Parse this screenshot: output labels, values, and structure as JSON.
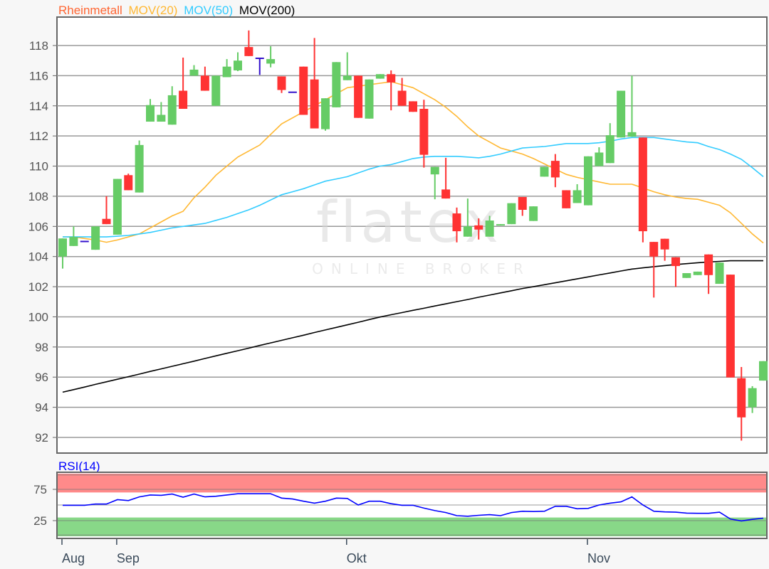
{
  "chart_data": [
    {
      "type": "candlestick",
      "legend": [
        {
          "label": "Rheinmetall",
          "color": "#ff6633"
        },
        {
          "label": "MOV(20)",
          "color": "#ffb833"
        },
        {
          "label": "MOV(50)",
          "color": "#33ccff"
        },
        {
          "label": "MOV(200)",
          "color": "#000000"
        }
      ],
      "legend_placement": "top-left",
      "ylim": [
        91,
        120
      ],
      "yticks": [
        "92",
        "94",
        "96",
        "98",
        "100",
        "102",
        "104",
        "106",
        "108",
        "110",
        "112",
        "114",
        "116",
        "118"
      ],
      "grid": true,
      "colors": {
        "up": "#66cc66",
        "down": "#ff3333",
        "unchanged": "#3311cc"
      },
      "candles": [
        [
          104.0,
          105.2,
          103.2,
          105.2
        ],
        [
          104.7,
          106.0,
          104.7,
          105.3
        ],
        [
          105.0,
          105.0,
          105.0,
          105.0
        ],
        [
          104.45,
          106.0,
          104.45,
          106.0
        ],
        [
          106.5,
          108.0,
          106.15,
          106.15
        ],
        [
          105.45,
          109.15,
          105.45,
          109.15
        ],
        [
          109.4,
          109.5,
          108.4,
          108.4
        ],
        [
          108.25,
          111.7,
          108.25,
          111.4
        ],
        [
          112.95,
          114.45,
          112.95,
          114.05
        ],
        [
          112.95,
          114.25,
          112.95,
          113.4
        ],
        [
          112.75,
          115.3,
          112.75,
          114.7
        ],
        [
          115.0,
          117.2,
          113.8,
          113.8
        ],
        [
          116.0,
          116.7,
          116.0,
          116.4
        ],
        [
          116.0,
          116.6,
          115.0,
          115.0
        ],
        [
          114.0,
          116.0,
          114.0,
          116.0
        ],
        [
          115.9,
          117.1,
          115.9,
          116.6
        ],
        [
          116.35,
          117.55,
          116.3,
          117.0
        ],
        [
          117.9,
          119.0,
          117.3,
          117.3
        ],
        [
          117.15,
          117.15,
          116.05,
          117.15
        ],
        [
          116.8,
          117.95,
          116.55,
          117.1
        ],
        [
          115.95,
          115.95,
          114.85,
          115.05
        ],
        [
          114.9,
          114.9,
          114.9,
          114.9
        ],
        [
          116.6,
          116.6,
          113.4,
          113.4
        ],
        [
          115.75,
          118.5,
          112.5,
          112.5
        ],
        [
          112.45,
          114.5,
          112.35,
          114.5
        ],
        [
          113.9,
          116.9,
          113.9,
          116.9
        ],
        [
          115.7,
          117.55,
          115.7,
          116.0
        ],
        [
          116.0,
          116.0,
          113.2,
          113.2
        ],
        [
          113.15,
          115.75,
          113.15,
          115.75
        ],
        [
          115.8,
          116.1,
          115.8,
          116.1
        ],
        [
          116.1,
          116.35,
          113.7,
          115.55
        ],
        [
          115.0,
          115.85,
          114.0,
          114.0
        ],
        [
          114.3,
          114.3,
          113.6,
          113.6
        ],
        [
          113.8,
          114.4,
          109.9,
          110.75
        ],
        [
          109.45,
          109.95,
          107.8,
          109.95
        ],
        [
          108.45,
          110.55,
          107.85,
          107.85
        ],
        [
          106.86,
          107.25,
          104.94,
          105.68
        ],
        [
          105.32,
          107.85,
          105.32,
          106.0
        ],
        [
          106.07,
          106.53,
          105.13,
          105.79
        ],
        [
          105.32,
          106.7,
          105.32,
          106.39
        ],
        [
          106.06,
          106.15,
          106.06,
          106.15
        ],
        [
          106.15,
          107.54,
          106.15,
          107.54
        ],
        [
          107.95,
          107.95,
          106.7,
          107.1
        ],
        [
          106.36,
          107.33,
          106.36,
          107.33
        ],
        [
          109.3,
          109.95,
          109.3,
          109.95
        ],
        [
          110.35,
          110.8,
          108.6,
          109.25
        ],
        [
          108.4,
          108.4,
          107.2,
          107.2
        ],
        [
          107.55,
          108.8,
          107.55,
          108.4
        ],
        [
          107.4,
          110.65,
          107.4,
          110.65
        ],
        [
          110.0,
          111.25,
          110.0,
          110.9
        ],
        [
          110.2,
          112.85,
          110.2,
          112.05
        ],
        [
          111.9,
          115.0,
          111.9,
          115.0
        ],
        [
          111.95,
          116.0,
          111.95,
          112.25
        ],
        [
          111.9,
          111.9,
          104.94,
          105.68
        ],
        [
          104.97,
          104.97,
          101.28,
          104.0
        ],
        [
          105.18,
          105.18,
          103.72,
          104.47
        ],
        [
          103.95,
          103.95,
          101.99,
          103.37
        ],
        [
          102.58,
          102.9,
          102.58,
          102.9
        ],
        [
          102.77,
          103.0,
          102.77,
          103.0
        ],
        [
          104.14,
          104.14,
          101.52,
          102.77
        ],
        [
          102.19,
          103.6,
          102.19,
          103.6
        ],
        [
          102.8,
          102.8,
          95.98,
          95.98
        ],
        [
          95.93,
          96.67,
          91.79,
          93.33
        ],
        [
          94.0,
          95.4,
          93.62,
          95.27
        ],
        [
          95.77,
          97.06,
          95.77,
          97.06
        ]
      ],
      "candle_fields": [
        "open",
        "high",
        "low",
        "close"
      ],
      "series": [
        {
          "name": "MOV(20)",
          "color": "#ffb833",
          "values": [
            105.3,
            105.3,
            105.2,
            105.1,
            104.95,
            105.1,
            105.3,
            105.5,
            105.9,
            106.3,
            106.7,
            107.0,
            107.9,
            108.6,
            109.4,
            110.0,
            110.6,
            111.0,
            111.4,
            112.1,
            112.8,
            113.2,
            113.6,
            114.0,
            114.4,
            114.8,
            115.2,
            115.3,
            115.4,
            115.5,
            115.6,
            115.4,
            115.2,
            114.8,
            114.4,
            113.9,
            113.3,
            112.6,
            112.0,
            111.6,
            111.2,
            111.0,
            110.8,
            110.5,
            110.15,
            109.8,
            109.45,
            109.25,
            109.1,
            108.95,
            108.8,
            108.8,
            108.8,
            108.55,
            108.3,
            108.1,
            107.95,
            107.85,
            107.8,
            107.6,
            107.4,
            106.9,
            106.2,
            105.5,
            104.9
          ]
        },
        {
          "name": "MOV(50)",
          "color": "#33ccff",
          "values": [
            105.3,
            105.3,
            105.3,
            105.3,
            105.3,
            105.35,
            105.4,
            105.5,
            105.6,
            105.75,
            105.9,
            106.0,
            106.1,
            106.2,
            106.4,
            106.6,
            106.85,
            107.1,
            107.4,
            107.75,
            108.1,
            108.3,
            108.5,
            108.75,
            109.0,
            109.15,
            109.3,
            109.55,
            109.8,
            110.0,
            110.1,
            110.3,
            110.5,
            110.6,
            110.65,
            110.65,
            110.65,
            110.6,
            110.55,
            110.65,
            110.8,
            111.0,
            111.2,
            111.25,
            111.3,
            111.4,
            111.5,
            111.5,
            111.5,
            111.55,
            111.65,
            111.8,
            111.9,
            111.9,
            111.9,
            111.8,
            111.7,
            111.6,
            111.55,
            111.3,
            111.1,
            110.8,
            110.45,
            109.9,
            109.3
          ]
        },
        {
          "name": "MOV(200)",
          "color": "#000000",
          "values": [
            95.0,
            95.17,
            95.34,
            95.52,
            95.69,
            95.86,
            96.03,
            96.2,
            96.38,
            96.55,
            96.72,
            96.89,
            97.06,
            97.24,
            97.41,
            97.58,
            97.75,
            97.92,
            98.1,
            98.27,
            98.44,
            98.61,
            98.78,
            98.96,
            99.13,
            99.3,
            99.47,
            99.64,
            99.82,
            99.99,
            100.14,
            100.28,
            100.43,
            100.57,
            100.72,
            100.86,
            101.01,
            101.15,
            101.3,
            101.44,
            101.59,
            101.73,
            101.88,
            102.0,
            102.13,
            102.26,
            102.39,
            102.52,
            102.65,
            102.78,
            102.91,
            103.04,
            103.17,
            103.25,
            103.33,
            103.4,
            103.47,
            103.53,
            103.59,
            103.64,
            103.68,
            103.72,
            103.72,
            103.72,
            103.72
          ]
        }
      ]
    },
    {
      "type": "line",
      "title": "RSI(14)",
      "title_color": "#0000ff",
      "ylim": [
        0,
        100
      ],
      "yticks": [
        "75",
        "25"
      ],
      "bands": [
        {
          "from": 70,
          "to": 100,
          "color": "#ff8a8a"
        },
        {
          "from": 0,
          "to": 30,
          "color": "#88d888"
        }
      ],
      "series": [
        {
          "color": "#0000ff",
          "values": [
            49.6,
            49.6,
            49.6,
            51.5,
            51.5,
            58.5,
            57,
            63,
            66,
            65.5,
            67.5,
            62.5,
            67.5,
            63,
            64,
            66,
            68,
            68,
            68,
            68,
            61,
            59.5,
            56,
            53,
            56,
            61,
            60.5,
            50,
            56,
            56,
            52,
            49.6,
            49.6,
            45,
            41,
            38,
            33,
            32,
            33.5,
            34.5,
            33,
            38,
            40,
            39.5,
            40,
            48,
            48,
            44,
            44.5,
            50,
            53,
            55,
            63,
            50,
            40,
            39,
            38.5,
            37,
            36.7,
            36.7,
            38.5,
            27.5,
            24.5,
            27,
            29
          ]
        }
      ]
    }
  ],
  "x_axis": {
    "ticks": [
      {
        "label": "Aug",
        "index": 0
      },
      {
        "label": "Sep",
        "index": 5
      },
      {
        "label": "Okt",
        "index": 26
      },
      {
        "label": "Nov",
        "index": 48
      }
    ]
  },
  "watermark": {
    "brand": "flatex",
    "tagline": "ONLINE BROKER"
  }
}
